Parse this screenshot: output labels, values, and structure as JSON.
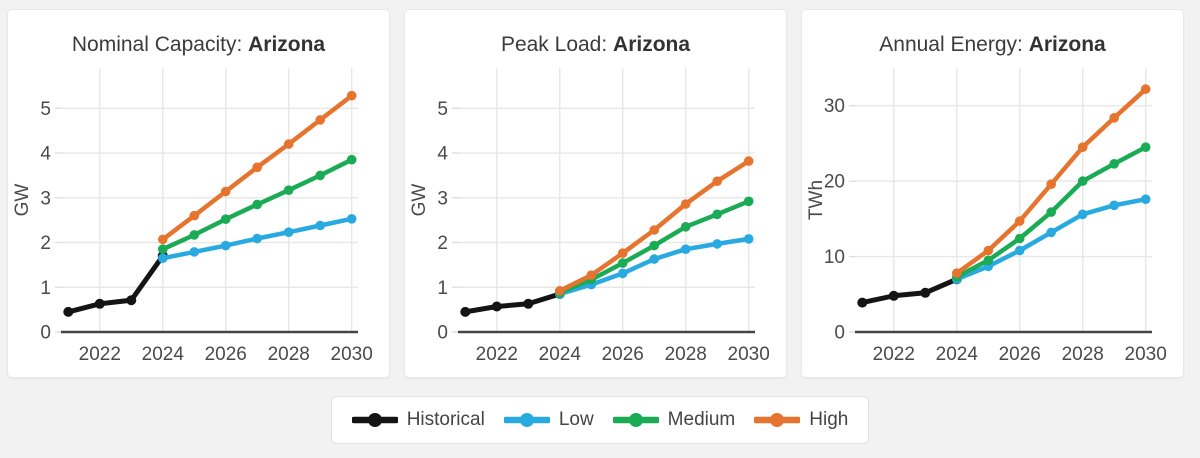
{
  "page": {
    "background": "#f2f2f2"
  },
  "colors": {
    "historical": "#141414",
    "low": "#28aae1",
    "medium": "#1aab54",
    "high": "#e6742e"
  },
  "legend": {
    "position": "bottom",
    "items": [
      {
        "label": "Historical",
        "color": "#141414"
      },
      {
        "label": "Low",
        "color": "#28aae1"
      },
      {
        "label": "Medium",
        "color": "#1aab54"
      },
      {
        "label": "High",
        "color": "#e6742e"
      }
    ]
  },
  "chart_data": [
    {
      "type": "line",
      "title_prefix": "Nominal Capacity: ",
      "title_bold": "Arizona",
      "ylabel": "GW",
      "xlabel": "",
      "xlim": [
        2020.8,
        2030.2
      ],
      "ylim": [
        0,
        5.9
      ],
      "xticks": [
        2022,
        2024,
        2026,
        2028,
        2030
      ],
      "yticks": [
        0,
        1,
        2,
        3,
        4,
        5
      ],
      "grid": true,
      "series": [
        {
          "name": "Historical",
          "color": "#141414",
          "x": [
            2021,
            2022,
            2023,
            2024
          ],
          "y": [
            0.45,
            0.63,
            0.71,
            1.7
          ]
        },
        {
          "name": "Low",
          "color": "#28aae1",
          "x": [
            2024,
            2025,
            2026,
            2027,
            2028,
            2029,
            2030
          ],
          "y": [
            1.65,
            1.79,
            1.93,
            2.09,
            2.23,
            2.38,
            2.53
          ]
        },
        {
          "name": "Medium",
          "color": "#1aab54",
          "x": [
            2024,
            2025,
            2026,
            2027,
            2028,
            2029,
            2030
          ],
          "y": [
            1.85,
            2.17,
            2.52,
            2.85,
            3.17,
            3.5,
            3.85
          ]
        },
        {
          "name": "High",
          "color": "#e6742e",
          "x": [
            2024,
            2025,
            2026,
            2027,
            2028,
            2029,
            2030
          ],
          "y": [
            2.07,
            2.6,
            3.14,
            3.68,
            4.2,
            4.74,
            5.28
          ]
        }
      ]
    },
    {
      "type": "line",
      "title_prefix": "Peak Load: ",
      "title_bold": "Arizona",
      "ylabel": "GW",
      "xlabel": "",
      "xlim": [
        2020.8,
        2030.2
      ],
      "ylim": [
        0,
        5.9
      ],
      "xticks": [
        2022,
        2024,
        2026,
        2028,
        2030
      ],
      "yticks": [
        0,
        1,
        2,
        3,
        4,
        5
      ],
      "grid": true,
      "series": [
        {
          "name": "Historical",
          "color": "#141414",
          "x": [
            2021,
            2022,
            2023,
            2024
          ],
          "y": [
            0.45,
            0.57,
            0.63,
            0.85
          ]
        },
        {
          "name": "Low",
          "color": "#28aae1",
          "x": [
            2024,
            2025,
            2026,
            2027,
            2028,
            2029,
            2030
          ],
          "y": [
            0.85,
            1.06,
            1.31,
            1.63,
            1.85,
            1.97,
            2.08
          ]
        },
        {
          "name": "Medium",
          "color": "#1aab54",
          "x": [
            2024,
            2025,
            2026,
            2027,
            2028,
            2029,
            2030
          ],
          "y": [
            0.88,
            1.17,
            1.54,
            1.93,
            2.35,
            2.63,
            2.92
          ]
        },
        {
          "name": "High",
          "color": "#e6742e",
          "x": [
            2024,
            2025,
            2026,
            2027,
            2028,
            2029,
            2030
          ],
          "y": [
            0.92,
            1.27,
            1.76,
            2.28,
            2.86,
            3.37,
            3.82
          ]
        }
      ]
    },
    {
      "type": "line",
      "title_prefix": "Annual Energy: ",
      "title_bold": "Arizona",
      "ylabel": "TWh",
      "xlabel": "",
      "xlim": [
        2020.8,
        2030.2
      ],
      "ylim": [
        0,
        35
      ],
      "xticks": [
        2022,
        2024,
        2026,
        2028,
        2030
      ],
      "yticks": [
        0,
        10,
        20,
        30
      ],
      "grid": true,
      "series": [
        {
          "name": "Historical",
          "color": "#141414",
          "x": [
            2021,
            2022,
            2023,
            2024
          ],
          "y": [
            3.9,
            4.8,
            5.2,
            7.0
          ]
        },
        {
          "name": "Low",
          "color": "#28aae1",
          "x": [
            2024,
            2025,
            2026,
            2027,
            2028,
            2029,
            2030
          ],
          "y": [
            7.0,
            8.7,
            10.8,
            13.2,
            15.6,
            16.8,
            17.6
          ]
        },
        {
          "name": "Medium",
          "color": "#1aab54",
          "x": [
            2024,
            2025,
            2026,
            2027,
            2028,
            2029,
            2030
          ],
          "y": [
            7.3,
            9.5,
            12.4,
            15.9,
            20.0,
            22.3,
            24.5
          ]
        },
        {
          "name": "High",
          "color": "#e6742e",
          "x": [
            2024,
            2025,
            2026,
            2027,
            2028,
            2029,
            2030
          ],
          "y": [
            7.8,
            10.8,
            14.7,
            19.6,
            24.5,
            28.4,
            32.2
          ]
        }
      ]
    }
  ]
}
